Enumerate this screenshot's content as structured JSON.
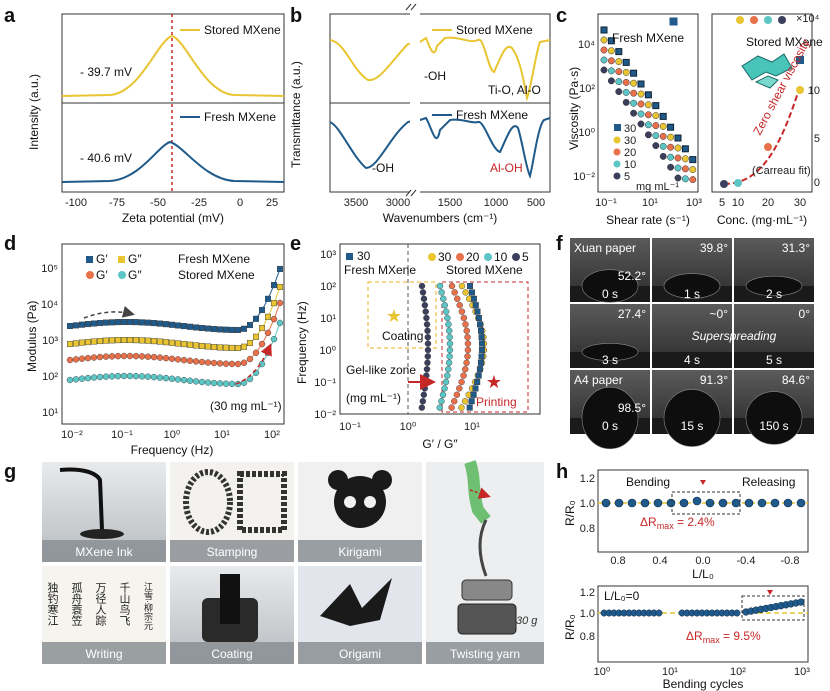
{
  "panels": {
    "a": "a",
    "b": "b",
    "c": "c",
    "d": "d",
    "e": "e",
    "f": "f",
    "g": "g",
    "h": "h"
  },
  "colors": {
    "stored": "#e8c531",
    "fresh": "#1f5a8a",
    "red": "#c62828",
    "orange": "#e8704b",
    "teal": "#5cc5c5",
    "dark": "#3b3f5c",
    "gray": "#555"
  },
  "a": {
    "ylabel": "Intensity (a.u.)",
    "xlabel": "Zeta potential (mV)",
    "xticks": [
      "-100",
      "-75",
      "-50",
      "-25",
      "0",
      "25"
    ],
    "stored_label": "Stored MXene",
    "fresh_label": "Fresh MXene",
    "stored_value": "- 39.7 mV",
    "fresh_value": "- 40.6 mV"
  },
  "b": {
    "ylabel": "Transmittance (a.u.)",
    "xlabel": "Wavenumbers (cm⁻¹)",
    "xticks": [
      "3500",
      "3000",
      "1500",
      "1000",
      "500"
    ],
    "stored_label": "Stored MXene",
    "fresh_label": "Fresh MXene",
    "oh_top": "-OH",
    "tio": "Ti-O, Al-O",
    "oh_bottom": "-OH",
    "aloh": "Al-OH"
  },
  "c": {
    "ylabel": "Viscosity (Pa·s)",
    "xlabel_left": "Shear rate (s⁻¹)",
    "xlabel_right": "Conc. (mg·mL⁻¹)",
    "fresh_label": "Fresh MXene",
    "stored_label": "Stored MXene",
    "yticks": [
      "10⁴",
      "10²",
      "10⁰",
      "10⁻²"
    ],
    "xticks_left": [
      "10⁻¹",
      "10¹",
      "10³"
    ],
    "xticks_right": [
      "5",
      "10",
      "20",
      "30"
    ],
    "yticks_right": [
      "0",
      "5",
      "10"
    ],
    "yunit_right": "×10⁴",
    "legend": [
      "30",
      "30",
      "20",
      "10",
      "5"
    ],
    "legend_unit": "mg mL⁻¹",
    "zero_shear": "Zero shear viscosity",
    "carreau": "(Carreau fit)"
  },
  "d": {
    "ylabel": "Modulus (Pa)",
    "xlabel": "Frequency (Hz)",
    "yticks": [
      "10⁵",
      "10⁴",
      "10³",
      "10²",
      "10¹"
    ],
    "xticks": [
      "10⁻²",
      "10⁻¹",
      "10⁰",
      "10¹",
      "10²"
    ],
    "leg_g1": "G′",
    "leg_g2": "G″",
    "leg_g3": "G′",
    "leg_g4": "G″",
    "fresh_label": "Fresh MXene",
    "stored_label": "Stored MXene",
    "note": "(30 mg mL⁻¹)"
  },
  "e": {
    "ylabel": "Frequency (Hz)",
    "xlabel": "G′ / G″",
    "yticks": [
      "10³",
      "10²",
      "10¹",
      "10⁰",
      "10⁻¹",
      "10⁻²"
    ],
    "xticks": [
      "10⁻¹",
      "10⁰",
      "10¹"
    ],
    "legend_fresh": "30",
    "legend_stored": [
      "30",
      "20",
      "10",
      "5"
    ],
    "fresh_label": "Fresh MXene",
    "stored_label": "Stored MXene",
    "coating": "Coating",
    "printing": "Printing",
    "gel_zone": "Gel-like zone",
    "unit": "(mg mL⁻¹)"
  },
  "f": {
    "xuan": "Xuan paper",
    "a4": "A4 paper",
    "superspreading": "Superspreading",
    "frames": [
      {
        "angle": "52.2°",
        "time": "0 s"
      },
      {
        "angle": "39.8°",
        "time": "1 s"
      },
      {
        "angle": "31.3°",
        "time": "2 s"
      },
      {
        "angle": "27.4°",
        "time": "3 s"
      },
      {
        "angle": "~0°",
        "time": "4 s"
      },
      {
        "angle": "0°",
        "time": "5 s"
      },
      {
        "angle": "98.5°",
        "time": "0 s"
      },
      {
        "angle": "91.3°",
        "time": "15 s"
      },
      {
        "angle": "84.6°",
        "time": "150 s"
      }
    ]
  },
  "g": {
    "captions": [
      "MXene Ink",
      "Stamping",
      "Kirigami",
      "Writing",
      "Coating",
      "Origami",
      "Twisting yarn"
    ],
    "weight": "30 g",
    "calligraphy": [
      "独钓寒江",
      "孤舟蓑笠",
      "万径人踪",
      "千山鸟飞",
      "江雪·柳宗元"
    ]
  },
  "h": {
    "top": {
      "ylabel": "R/R₀",
      "xlabel": "L/L₀",
      "yticks": [
        "1.2",
        "1.0",
        "0.8"
      ],
      "xticks": [
        "0.8",
        "0.4",
        "0.0",
        "-0.4",
        "-0.8"
      ],
      "bending": "Bending",
      "releasing": "Releasing",
      "delta": "ΔR",
      "delta_sub": "max",
      "delta_val": " = 2.4%"
    },
    "bottom": {
      "ylabel": "R/R₀",
      "xlabel": "Bending cycles",
      "yticks": [
        "1.2",
        "1.0",
        "0.8"
      ],
      "xticks": [
        "10⁰",
        "10¹",
        "10²",
        "10³"
      ],
      "note": "L/L₀=0",
      "delta": "ΔR",
      "delta_sub": "max",
      "delta_val": " = 9.5%"
    }
  }
}
